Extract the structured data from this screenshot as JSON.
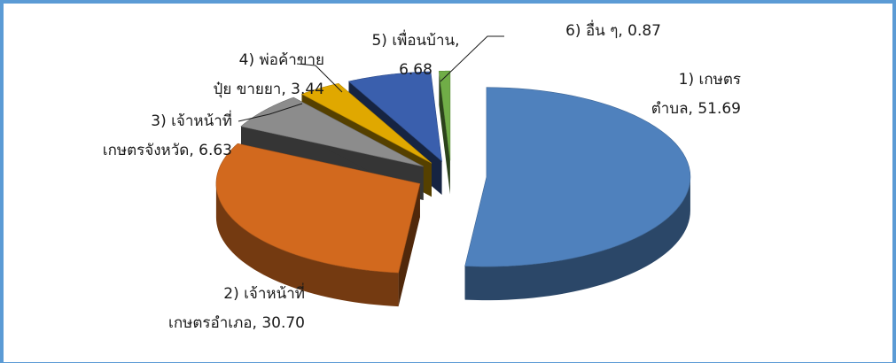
{
  "chart_data": {
    "type": "pie",
    "style": "exploded-3d",
    "title": "",
    "slices": [
      {
        "label_lines": [
          "1) เกษตร",
          "ตำบล, 51.69"
        ],
        "value": 51.69,
        "color": "#4f81bd"
      },
      {
        "label_lines": [
          "2) เจ้าหน้าที่",
          "เกษตรอำเภอ, 30.70"
        ],
        "value": 30.7,
        "color": "#d2691e"
      },
      {
        "label_lines": [
          "3) เจ้าหน้าที่",
          "เกษตรจังหวัด, 6.63"
        ],
        "value": 6.63,
        "color": "#8c8c8c"
      },
      {
        "label_lines": [
          "4) พ่อค้าขาย",
          "ปุ๋ย  ขายยา, 3.44"
        ],
        "value": 3.44,
        "color": "#e0a800"
      },
      {
        "label_lines": [
          "5) เพื่อนบ้าน,",
          "6.68"
        ],
        "value": 6.68,
        "color": "#3a5fad"
      },
      {
        "label_lines": [
          "6) อื่น ๆ, 0.87"
        ],
        "value": 0.87,
        "color": "#70ad47"
      }
    ]
  }
}
